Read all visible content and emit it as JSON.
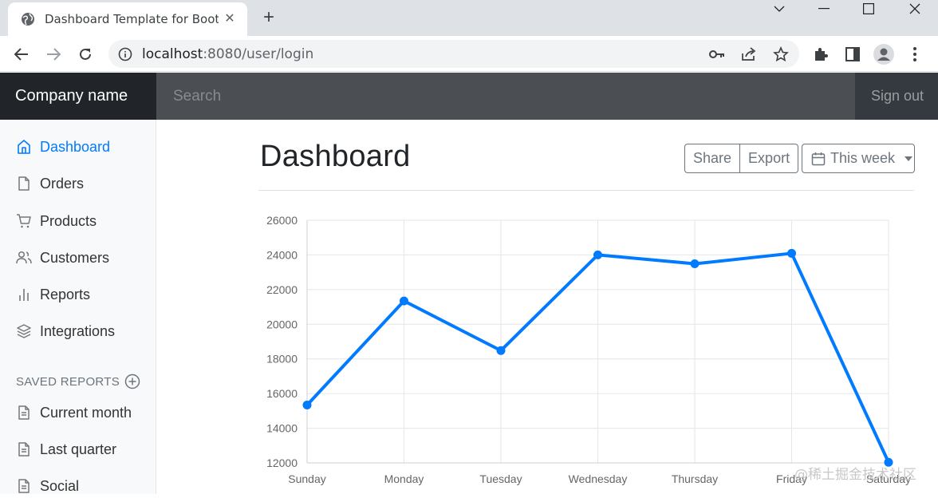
{
  "browser": {
    "tab_title": "Dashboard Template for Boots",
    "url_host": "localhost",
    "url_path": ":8080/user/login"
  },
  "navbar": {
    "brand": "Company name",
    "search_placeholder": "Search",
    "signout": "Sign out"
  },
  "sidebar": {
    "items": [
      {
        "label": "Dashboard",
        "icon": "home-icon",
        "active": true
      },
      {
        "label": "Orders",
        "icon": "file-icon"
      },
      {
        "label": "Products",
        "icon": "shopping-cart-icon"
      },
      {
        "label": "Customers",
        "icon": "users-icon"
      },
      {
        "label": "Reports",
        "icon": "bar-chart-icon"
      },
      {
        "label": "Integrations",
        "icon": "layers-icon"
      }
    ],
    "saved_reports_heading": "SAVED REPORTS",
    "saved_reports": [
      {
        "label": "Current month",
        "icon": "file-text-icon"
      },
      {
        "label": "Last quarter",
        "icon": "file-text-icon"
      },
      {
        "label": "Social",
        "icon": "file-text-icon"
      }
    ]
  },
  "main": {
    "title": "Dashboard",
    "share_label": "Share",
    "export_label": "Export",
    "week_label": "This week"
  },
  "chart_data": {
    "type": "line",
    "categories": [
      "Sunday",
      "Monday",
      "Tuesday",
      "Wednesday",
      "Thursday",
      "Friday",
      "Saturday"
    ],
    "values": [
      15339,
      21345,
      18483,
      24003,
      23489,
      24092,
      12034
    ],
    "ylim": [
      12000,
      26000
    ],
    "yticks": [
      12000,
      14000,
      16000,
      18000,
      20000,
      22000,
      24000,
      26000
    ],
    "color": "#007bff",
    "grid": true
  },
  "watermark": "@稀土掘金技术社区"
}
